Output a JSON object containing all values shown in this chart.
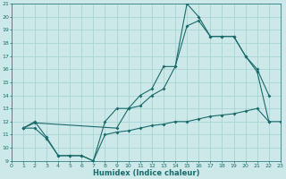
{
  "xlabel": "Humidex (Indice chaleur)",
  "bg_color": "#cde8e8",
  "grid_color": "#a8d4d4",
  "line_color": "#1a6b6b",
  "xlim": [
    0,
    23
  ],
  "ylim": [
    9,
    21
  ],
  "xticks": [
    0,
    1,
    2,
    3,
    4,
    5,
    6,
    7,
    8,
    9,
    10,
    11,
    12,
    13,
    14,
    15,
    16,
    17,
    18,
    19,
    20,
    21,
    22,
    23
  ],
  "yticks": [
    9,
    10,
    11,
    12,
    13,
    14,
    15,
    16,
    17,
    18,
    19,
    20,
    21
  ],
  "line1_x": [
    1,
    2,
    3,
    4,
    5,
    6,
    7,
    8,
    9,
    10,
    11,
    12,
    13,
    14,
    15,
    16,
    17,
    18,
    19,
    20,
    21,
    22
  ],
  "line1_y": [
    11.5,
    12.0,
    10.8,
    9.4,
    9.4,
    9.4,
    9.0,
    12.0,
    13.0,
    13.0,
    13.2,
    14.0,
    14.5,
    16.2,
    21.0,
    20.0,
    18.5,
    18.5,
    18.5,
    17.0,
    16.0,
    14.0
  ],
  "line2_x": [
    1,
    2,
    9,
    10,
    11,
    12,
    13,
    14,
    15,
    16,
    17,
    18,
    19,
    20,
    21,
    22
  ],
  "line2_y": [
    11.5,
    11.9,
    11.5,
    13.0,
    14.0,
    14.5,
    16.2,
    16.2,
    19.3,
    19.7,
    18.5,
    18.5,
    18.5,
    17.0,
    15.8,
    12.0
  ],
  "line3_x": [
    1,
    2,
    3,
    4,
    5,
    6,
    7,
    8,
    9,
    10,
    11,
    12,
    13,
    14,
    15,
    16,
    17,
    18,
    19,
    20,
    21,
    22,
    23
  ],
  "line3_y": [
    11.5,
    11.5,
    10.7,
    9.4,
    9.4,
    9.4,
    9.0,
    11.0,
    11.2,
    11.3,
    11.5,
    11.7,
    11.8,
    12.0,
    12.0,
    12.2,
    12.4,
    12.5,
    12.6,
    12.8,
    13.0,
    12.0,
    12.0
  ]
}
